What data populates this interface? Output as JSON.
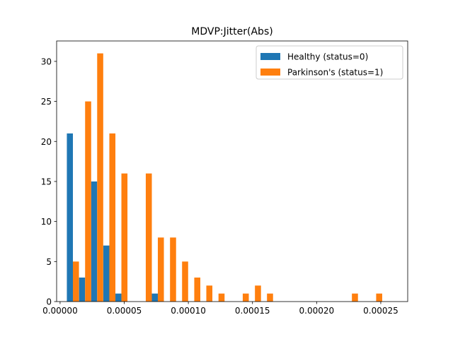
{
  "chart_data": {
    "type": "bar",
    "title": "MDVP:Jitter(Abs)",
    "xlabel": "",
    "ylabel": "",
    "xlim": [
      -2.7e-06,
      0.000271
    ],
    "ylim": [
      0,
      32.55
    ],
    "x_ticks": [
      0.0,
      5e-05,
      0.0001,
      0.00015,
      0.0002,
      0.00025
    ],
    "x_tick_labels": [
      "0.00000",
      "0.00005",
      "0.00010",
      "0.00015",
      "0.00020",
      "0.00025"
    ],
    "y_ticks": [
      0,
      5,
      10,
      15,
      20,
      25,
      30
    ],
    "y_tick_labels": [
      "0",
      "5",
      "10",
      "15",
      "20",
      "25",
      "30"
    ],
    "grid": false,
    "legend_position": "top-right",
    "bin_centers": [
      1e-05,
      1.95e-05,
      2.89e-05,
      3.84e-05,
      4.78e-05,
      5.73e-05,
      6.68e-05,
      7.62e-05,
      8.57e-05,
      9.51e-05,
      0.0001046,
      0.000114,
      0.0001235,
      0.000133,
      0.0001424,
      0.0001519,
      0.0001613,
      0.0001708,
      0.0001802,
      0.0001897,
      0.0001992,
      0.0002086,
      0.0002181,
      0.0002275,
      0.000237,
      0.0002464
    ],
    "bin_width": 9.45e-06,
    "series": [
      {
        "name": "Healthy (status=0)",
        "color": "#1f77b4",
        "values": [
          21,
          3,
          15,
          7,
          1,
          0,
          0,
          1,
          0,
          0,
          0,
          0,
          0,
          0,
          0,
          0,
          0,
          0,
          0,
          0,
          0,
          0,
          0,
          0,
          0,
          0
        ]
      },
      {
        "name": "Parkinson's (status=1)",
        "color": "#ff7f0e",
        "values": [
          5,
          25,
          31,
          21,
          16,
          0,
          16,
          8,
          8,
          5,
          3,
          2,
          1,
          0,
          1,
          2,
          1,
          0,
          0,
          0,
          0,
          0,
          0,
          1,
          0,
          1
        ]
      }
    ]
  }
}
